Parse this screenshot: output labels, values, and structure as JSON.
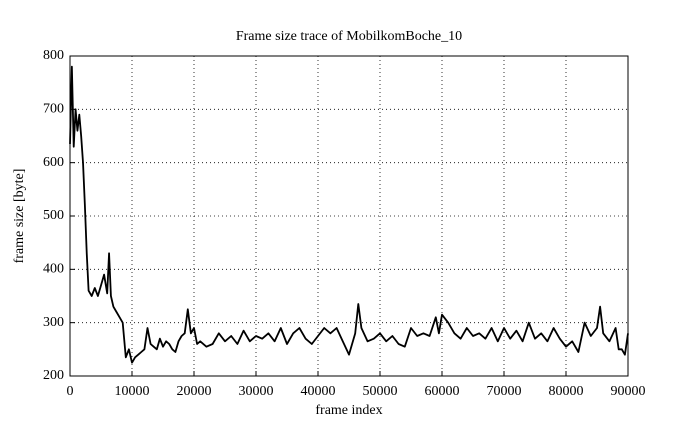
{
  "chart_data": {
    "type": "line",
    "title": "Frame size trace of MobilkomBoche_10",
    "xlabel": "frame index",
    "ylabel": "frame size [byte]",
    "x": [
      0,
      300,
      600,
      900,
      1200,
      1500,
      1800,
      2100,
      2400,
      2700,
      3000,
      3500,
      4000,
      4500,
      5000,
      5500,
      6000,
      6300,
      6600,
      7000,
      7500,
      8000,
      8500,
      9000,
      9500,
      10000,
      10500,
      11000,
      11500,
      12000,
      12500,
      13000,
      13500,
      14000,
      14500,
      15000,
      15500,
      16000,
      16500,
      17000,
      17500,
      18000,
      18500,
      19000,
      19500,
      20000,
      20500,
      21000,
      22000,
      23000,
      24000,
      25000,
      26000,
      27000,
      28000,
      29000,
      30000,
      31000,
      32000,
      33000,
      34000,
      35000,
      36000,
      37000,
      38000,
      39000,
      40000,
      41000,
      42000,
      43000,
      44000,
      45000,
      46000,
      46500,
      47000,
      48000,
      49000,
      50000,
      51000,
      52000,
      53000,
      54000,
      55000,
      56000,
      57000,
      58000,
      59000,
      59500,
      60000,
      61000,
      62000,
      63000,
      64000,
      65000,
      66000,
      67000,
      68000,
      69000,
      70000,
      71000,
      72000,
      73000,
      74000,
      75000,
      76000,
      77000,
      78000,
      79000,
      80000,
      81000,
      82000,
      83000,
      84000,
      85000,
      85500,
      86000,
      87000,
      88000,
      88500,
      89000,
      89500,
      90000
    ],
    "values": [
      635,
      780,
      630,
      700,
      660,
      690,
      650,
      600,
      520,
      430,
      360,
      350,
      365,
      350,
      370,
      390,
      355,
      430,
      350,
      330,
      320,
      310,
      300,
      235,
      250,
      225,
      235,
      240,
      245,
      250,
      290,
      260,
      255,
      250,
      270,
      255,
      265,
      260,
      250,
      245,
      265,
      275,
      280,
      325,
      280,
      290,
      260,
      265,
      255,
      260,
      280,
      265,
      275,
      260,
      285,
      265,
      275,
      270,
      280,
      265,
      290,
      260,
      280,
      290,
      270,
      260,
      275,
      290,
      280,
      290,
      265,
      240,
      280,
      335,
      290,
      265,
      270,
      280,
      265,
      275,
      260,
      255,
      290,
      275,
      280,
      275,
      310,
      280,
      315,
      300,
      280,
      270,
      290,
      275,
      280,
      270,
      290,
      265,
      290,
      270,
      285,
      265,
      300,
      270,
      280,
      265,
      290,
      270,
      255,
      265,
      245,
      300,
      275,
      290,
      330,
      280,
      265,
      290,
      250,
      250,
      240,
      280
    ],
    "color": "#000000",
    "xlim": [
      0,
      90000
    ],
    "xticks": [
      0,
      10000,
      20000,
      30000,
      40000,
      50000,
      60000,
      70000,
      80000,
      90000
    ],
    "ylim": [
      200,
      800
    ],
    "yticks": [
      200,
      300,
      400,
      500,
      600,
      700,
      800
    ],
    "grid": true
  }
}
